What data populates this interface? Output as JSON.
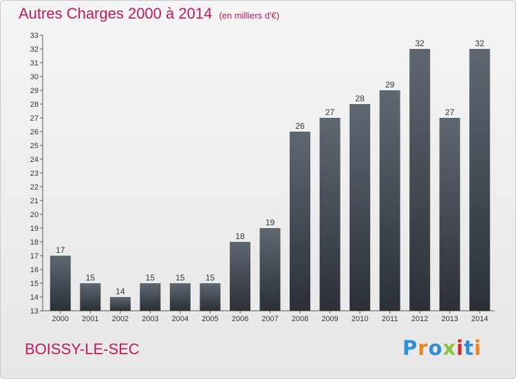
{
  "header": {
    "title": "Autres Charges 2000 à 2014",
    "unit": "(en milliers d'€)"
  },
  "footer": {
    "city": "BOISSY-LE-SEC",
    "logo_letters": [
      "P",
      "r",
      "o",
      "x",
      "i",
      "t",
      "i"
    ],
    "logo_colors": [
      "#2e8fd6",
      "#e8851e",
      "#2e8fd6",
      "#8bc53f",
      "#d42a2a",
      "#2e8fd6",
      "#e8851e"
    ]
  },
  "chart_data": {
    "type": "bar",
    "categories": [
      "2000",
      "2001",
      "2002",
      "2003",
      "2004",
      "2005",
      "2006",
      "2007",
      "2008",
      "2009",
      "2010",
      "2011",
      "2012",
      "2013",
      "2014"
    ],
    "values": [
      17,
      15,
      14,
      15,
      15,
      15,
      18,
      19,
      26,
      27,
      28,
      29,
      32,
      27,
      32
    ],
    "title": "Autres Charges 2000 à 2014",
    "ylim": [
      13,
      33
    ],
    "yticks": [
      13,
      14,
      15,
      16,
      17,
      18,
      19,
      20,
      21,
      22,
      23,
      24,
      25,
      26,
      27,
      28,
      29,
      30,
      31,
      32,
      33
    ],
    "bar_color_top": "#5f6770",
    "bar_color_bottom": "#2b3038",
    "grid": false
  }
}
